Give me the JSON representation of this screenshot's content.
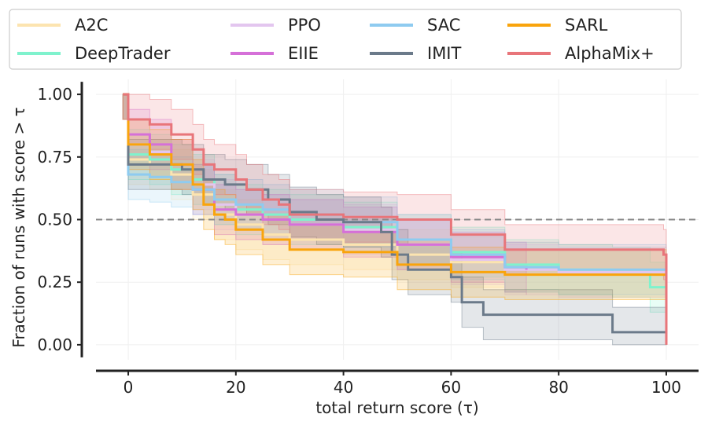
{
  "chart_data": {
    "type": "line",
    "title": "",
    "xlabel": "total return score (τ)",
    "ylabel": "Fraction of runs with score > τ",
    "xlim": [
      -6,
      106
    ],
    "ylim": [
      -0.06,
      1.06
    ],
    "xticks": [
      0,
      20,
      40,
      60,
      80,
      100
    ],
    "xtick_labels": [
      "0",
      "20",
      "40",
      "60",
      "80",
      "100"
    ],
    "yticks": [
      0.0,
      0.25,
      0.5,
      0.75,
      1.0
    ],
    "ytick_labels": [
      "0.00",
      "0.25",
      "0.50",
      "0.75",
      "1.00"
    ],
    "reference_line": 0.5,
    "grid": true,
    "legend_position": "top",
    "series": [
      {
        "name": "A2C",
        "color": "#fce4b0",
        "band": 0.1,
        "x": [
          -1,
          0,
          4,
          8,
          12,
          16,
          20,
          25,
          30,
          40,
          50,
          60,
          70,
          80,
          90,
          100
        ],
        "y": [
          1.0,
          0.74,
          0.72,
          0.68,
          0.6,
          0.52,
          0.48,
          0.44,
          0.42,
          0.4,
          0.36,
          0.33,
          0.31,
          0.3,
          0.29,
          0.28
        ]
      },
      {
        "name": "DeepTrader",
        "color": "#7ff2cd",
        "band": 0.1,
        "x": [
          -1,
          0,
          4,
          8,
          12,
          16,
          20,
          25,
          30,
          40,
          50,
          60,
          70,
          80,
          90,
          97,
          100
        ],
        "y": [
          1.0,
          0.76,
          0.74,
          0.7,
          0.66,
          0.58,
          0.54,
          0.52,
          0.5,
          0.47,
          0.42,
          0.37,
          0.32,
          0.3,
          0.29,
          0.23,
          0.23
        ]
      },
      {
        "name": "PPO",
        "color": "#e3c6ef",
        "band": 0.1,
        "x": [
          -1,
          0,
          4,
          8,
          12,
          16,
          20,
          25,
          30,
          40,
          50,
          60,
          70,
          80,
          90,
          100
        ],
        "y": [
          1.0,
          0.8,
          0.77,
          0.72,
          0.64,
          0.56,
          0.52,
          0.5,
          0.48,
          0.46,
          0.4,
          0.34,
          0.3,
          0.29,
          0.29,
          0.29
        ]
      },
      {
        "name": "EIIE",
        "color": "#d570d8",
        "band": 0.1,
        "x": [
          -1,
          0,
          4,
          8,
          12,
          16,
          20,
          25,
          30,
          40,
          50,
          60,
          70,
          74
        ],
        "y": [
          1.0,
          0.84,
          0.8,
          0.72,
          0.62,
          0.54,
          0.52,
          0.5,
          0.48,
          0.45,
          0.4,
          0.35,
          0.31,
          0.3
        ]
      },
      {
        "name": "SAC",
        "color": "#8ecbf0",
        "band": 0.1,
        "x": [
          -1,
          0,
          4,
          8,
          12,
          16,
          20,
          25,
          30,
          40,
          50,
          60,
          70,
          80,
          90,
          100
        ],
        "y": [
          1.0,
          0.68,
          0.67,
          0.65,
          0.62,
          0.58,
          0.56,
          0.54,
          0.52,
          0.49,
          0.42,
          0.36,
          0.31,
          0.3,
          0.3,
          0.3
        ]
      },
      {
        "name": "IMIT",
        "color": "#6b7a8a",
        "band": 0.1,
        "x": [
          -1,
          0,
          5,
          10,
          14,
          18,
          22,
          26,
          30,
          35,
          40,
          47,
          49,
          52,
          60,
          62,
          66,
          80,
          90,
          100
        ],
        "y": [
          1.0,
          0.72,
          0.72,
          0.7,
          0.66,
          0.64,
          0.62,
          0.58,
          0.53,
          0.5,
          0.49,
          0.45,
          0.36,
          0.3,
          0.27,
          0.17,
          0.12,
          0.12,
          0.05,
          0.05
        ]
      },
      {
        "name": "SARL",
        "color": "#f9a40c",
        "band": 0.1,
        "x": [
          -1,
          0,
          4,
          8,
          12,
          14,
          16,
          18,
          20,
          25,
          30,
          40,
          50,
          60,
          70,
          80,
          90,
          100
        ],
        "y": [
          1.0,
          0.8,
          0.76,
          0.72,
          0.64,
          0.56,
          0.52,
          0.5,
          0.46,
          0.42,
          0.38,
          0.37,
          0.32,
          0.29,
          0.28,
          0.28,
          0.28,
          0.28
        ]
      },
      {
        "name": "AlphaMix+",
        "color": "#e8757a",
        "band": 0.1,
        "x": [
          -1,
          0,
          4,
          8,
          12,
          14,
          16,
          20,
          22,
          25,
          28,
          30,
          40,
          50,
          60,
          70,
          80,
          90,
          99.5,
          100
        ],
        "y": [
          1.0,
          0.9,
          0.88,
          0.84,
          0.78,
          0.72,
          0.7,
          0.66,
          0.62,
          0.58,
          0.56,
          0.52,
          0.51,
          0.5,
          0.44,
          0.38,
          0.38,
          0.38,
          0.36,
          0.0
        ]
      }
    ]
  }
}
